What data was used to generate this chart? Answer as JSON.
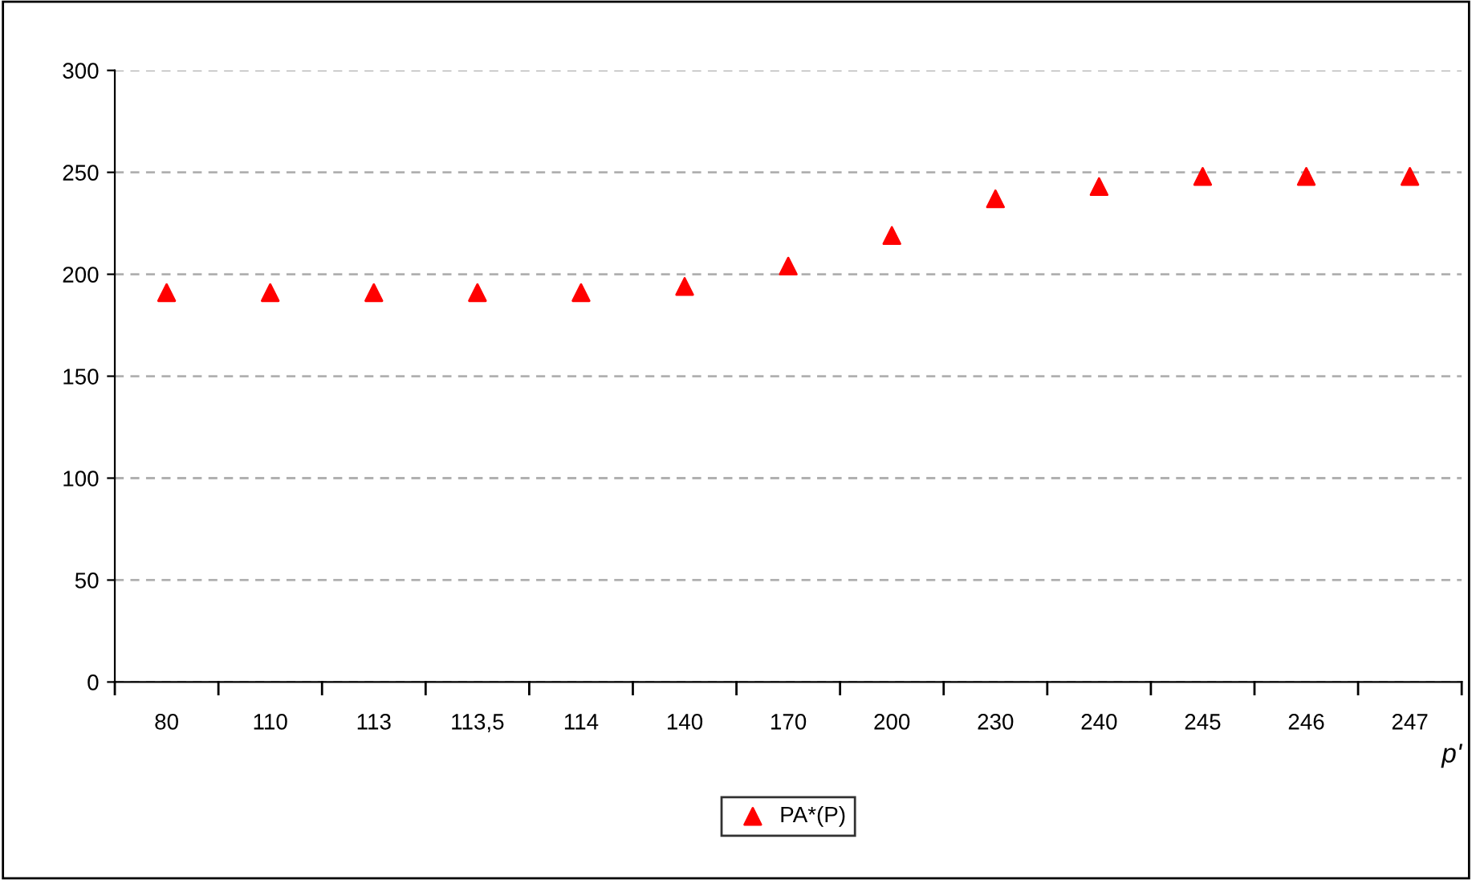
{
  "chart_data": {
    "type": "scatter",
    "xlabel": "p'",
    "categories": [
      "80",
      "110",
      "113",
      "113,5",
      "114",
      "140",
      "170",
      "200",
      "230",
      "240",
      "245",
      "246",
      "247"
    ],
    "series": [
      {
        "name": "PA*(P)",
        "color": "#ff0000",
        "values": [
          191,
          191,
          191,
          191,
          191,
          194,
          204,
          219,
          237,
          243,
          248,
          248,
          248
        ]
      }
    ],
    "ylim": [
      0,
      300
    ],
    "yticks": [
      0,
      50,
      100,
      150,
      200,
      250,
      300
    ],
    "grid": "y",
    "legend": "bottom",
    "marker": "triangle"
  }
}
